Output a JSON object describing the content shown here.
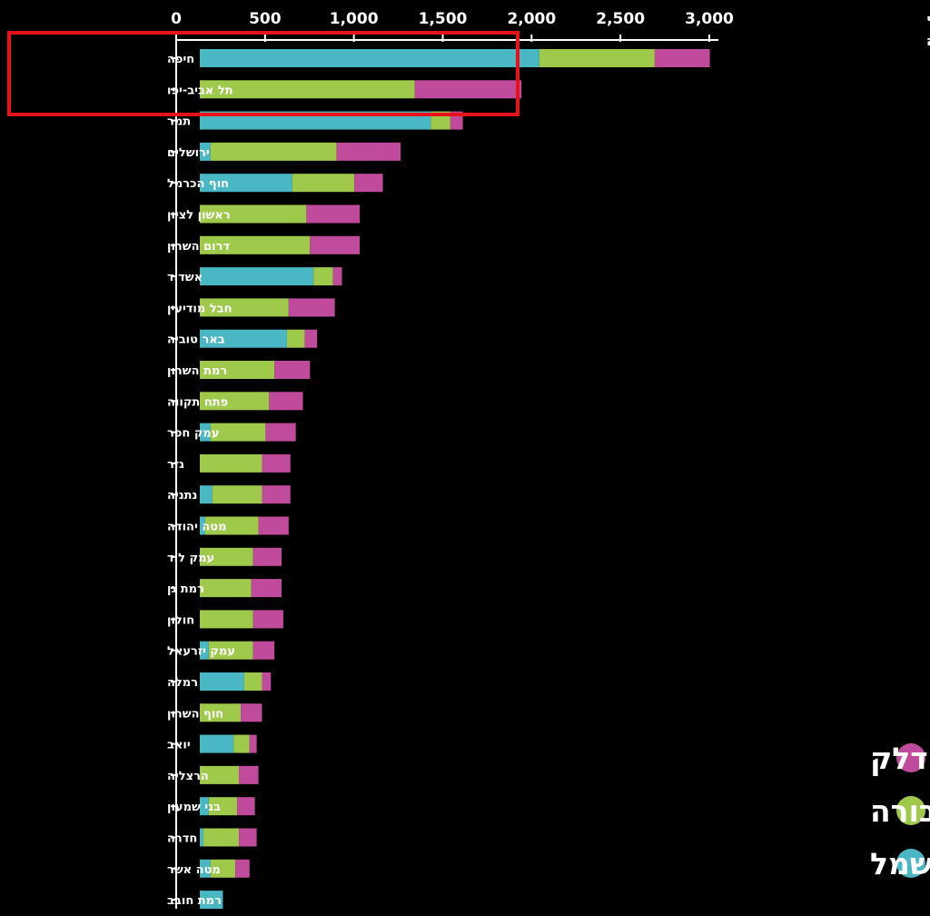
{
  "chart_data": {
    "type": "bar",
    "orientation": "horizontal",
    "stacked": true,
    "title_lines": [
      "חומר אורגני נדיף",
      "טון/שנה"
    ],
    "xlim": [
      0,
      3000
    ],
    "x_ticks": [
      0,
      500,
      1000,
      1500,
      2000,
      2500,
      3000
    ],
    "x_tick_labels": [
      "0",
      "500",
      "1,000",
      "1,500",
      "2,000",
      "2,500",
      "3,000"
    ],
    "legend_position": "bottom-right",
    "categories": [
      "חיפה",
      "תל אביב-יפו",
      "תמר",
      "ירושלים",
      "חוף הכרמל",
      "ראשון לציון",
      "דרום השרון",
      "אשדוד",
      "חבל מודיעין",
      "באר טוביה",
      "רמת השרון",
      "פתח תקווה",
      "עמק חפר",
      "גזר",
      "נתניה",
      "מטה יהודה",
      "עמק לוד",
      "רמת גן",
      "חולון",
      "עמק יזרעאל",
      "רמלה",
      "חוף השרון",
      "יואב",
      "הרצליה",
      "בני שמעון",
      "חדרה",
      "מטה אשר",
      "רמת חובב"
    ],
    "series": [
      {
        "name": "תעשייה ויצור חשמל",
        "color": "#49b7c4",
        "values": [
          1910,
          0,
          1300,
          60,
          520,
          0,
          0,
          640,
          0,
          490,
          0,
          0,
          60,
          0,
          70,
          30,
          0,
          0,
          0,
          50,
          250,
          0,
          190,
          0,
          50,
          20,
          60,
          130
        ]
      },
      {
        "name": "תחבורה",
        "color": "#9ec94a",
        "values": [
          650,
          1210,
          110,
          710,
          350,
          600,
          620,
          110,
          500,
          100,
          420,
          390,
          310,
          350,
          280,
          300,
          300,
          290,
          300,
          250,
          100,
          230,
          90,
          220,
          160,
          200,
          140,
          0
        ]
      },
      {
        "name": "תחנות דלק",
        "color": "#c04a9b",
        "values": [
          310,
          600,
          70,
          360,
          160,
          300,
          280,
          50,
          260,
          70,
          200,
          190,
          170,
          160,
          160,
          170,
          160,
          170,
          170,
          120,
          50,
          120,
          40,
          110,
          100,
          100,
          80,
          0
        ]
      }
    ],
    "annotation": "red-box-around-first-two-rows",
    "annotation_color": "#e8121c"
  }
}
